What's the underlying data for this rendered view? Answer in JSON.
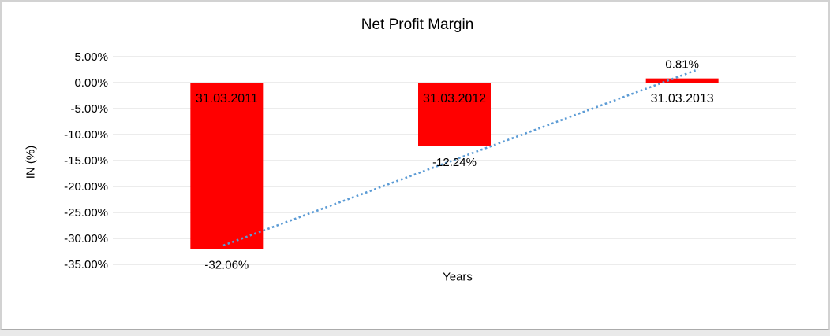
{
  "chart_data": {
    "type": "bar",
    "title": "Net Profit Margin",
    "xlabel": "Years",
    "ylabel": "IN (%)",
    "categories": [
      "31.03.2011",
      "31.03.2012",
      "31.03.2013"
    ],
    "values": [
      -32.06,
      -12.24,
      0.81
    ],
    "value_labels": [
      "-32.06%",
      "-12.24%",
      "0.81%"
    ],
    "ylim": [
      -35,
      5
    ],
    "ytick_step": 5,
    "ytick_labels": [
      "5.00%",
      "0.00%",
      "-5.00%",
      "-10.00%",
      "-15.00%",
      "-20.00%",
      "-25.00%",
      "-30.00%",
      "-35.00%"
    ],
    "grid": true,
    "legend": "none",
    "bar_color": "#ff0000",
    "grid_color": "#d9d9d9",
    "text_color": "#000000",
    "trendline": {
      "style": "dotted",
      "color": "#5b9bd5",
      "from": {
        "category_index": -0.015,
        "value": -31.35
      },
      "to": {
        "category_index": 2.07,
        "value": 2.55
      }
    }
  }
}
